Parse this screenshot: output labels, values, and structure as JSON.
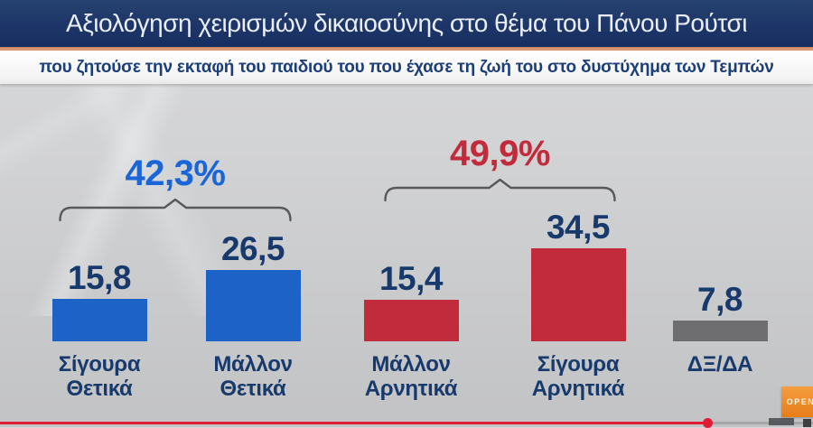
{
  "header": {
    "title": "Αξιολόγηση χειρισμών δικαιοσύνης στο θέμα του Πάνου Ρούτσι",
    "subtitle": "που ζητούσε την εκταφή του παιδιού του που έχασε τη ζωή του στο δυστύχημα των Τεμπών"
  },
  "chart_data": {
    "type": "bar",
    "title": "Αξιολόγηση χειρισμών δικαιοσύνης στο θέμα του Πάνου Ρούτσι",
    "unit": "percent",
    "categories": [
      "Σίγουρα Θετικά",
      "Μάλλον Θετικά",
      "Μάλλον Αρνητικά",
      "Σίγουρα Αρνητικά",
      "ΔΞ/ΔΑ"
    ],
    "values": [
      15.8,
      26.5,
      15.4,
      34.5,
      7.8
    ],
    "bars": [
      {
        "label_lines": [
          "Σίγουρα",
          "Θετικά"
        ],
        "value": 15.8,
        "display": "15,8",
        "color": "#1d62c6"
      },
      {
        "label_lines": [
          "Μάλλον",
          "Θετικά"
        ],
        "value": 26.5,
        "display": "26,5",
        "color": "#1d62c6"
      },
      {
        "label_lines": [
          "Μάλλον",
          "Αρνητικά"
        ],
        "value": 15.4,
        "display": "15,4",
        "color": "#c22b3b"
      },
      {
        "label_lines": [
          "Σίγουρα",
          "Αρνητικά"
        ],
        "value": 34.5,
        "display": "34,5",
        "color": "#c22b3b"
      },
      {
        "label_lines": [
          "ΔΞ/ΔΑ"
        ],
        "value": 7.8,
        "display": "7,8",
        "color": "#6e6e70"
      }
    ],
    "groups": [
      {
        "label": "42,3%",
        "value": 42.3,
        "color": "#1a66d8",
        "spans": [
          "Σίγουρα Θετικά",
          "Μάλλον Θετικά"
        ]
      },
      {
        "label": "49,9%",
        "value": 49.9,
        "color": "#c22b3b",
        "spans": [
          "Μάλλον Αρνητικά",
          "Σίγουρα Αρνητικά"
        ]
      }
    ],
    "value_label_color": "#17396c",
    "category_label_color": "#17396c",
    "xlabel": "",
    "ylabel": "",
    "grid": false,
    "legend": false
  },
  "branding": {
    "channel_logo_text": "OPEN",
    "logo_color": "#ee8d2b"
  },
  "player": {
    "progress_percent": 87,
    "progress_color": "#e01b34"
  }
}
